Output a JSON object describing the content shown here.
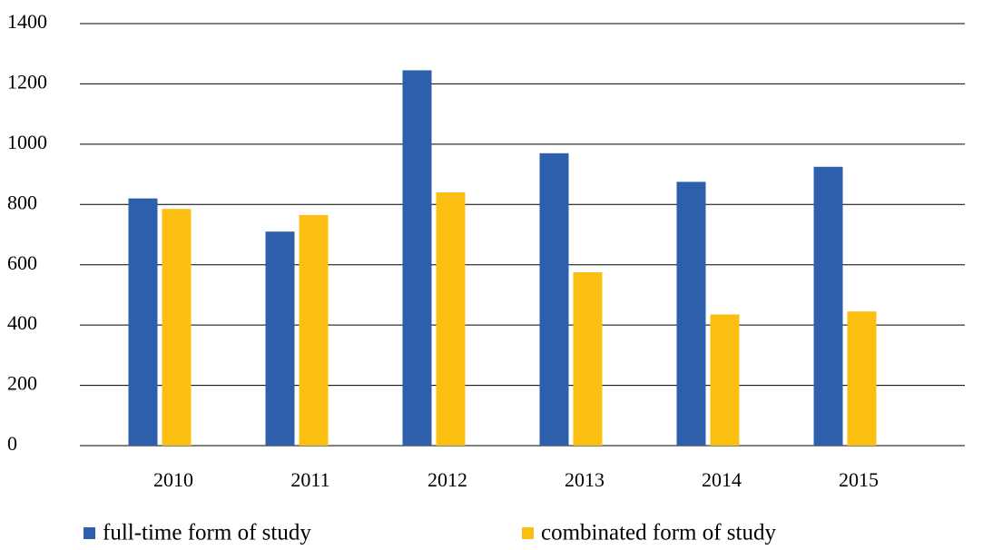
{
  "chart_data": {
    "type": "bar",
    "categories": [
      "2010",
      "2011",
      "2012",
      "2013",
      "2014",
      "2015"
    ],
    "series": [
      {
        "name": "full-time form of study",
        "color": "#2e5fad",
        "values": [
          820,
          710,
          1245,
          970,
          875,
          925
        ]
      },
      {
        "name": "combinated form of study",
        "color": "#fbbf12",
        "values": [
          785,
          765,
          840,
          575,
          435,
          445
        ]
      }
    ],
    "ylim": [
      0,
      1400
    ],
    "yticks": [
      0,
      200,
      400,
      600,
      800,
      1000,
      1200,
      1400
    ],
    "grid": true,
    "legend": "bottom"
  }
}
